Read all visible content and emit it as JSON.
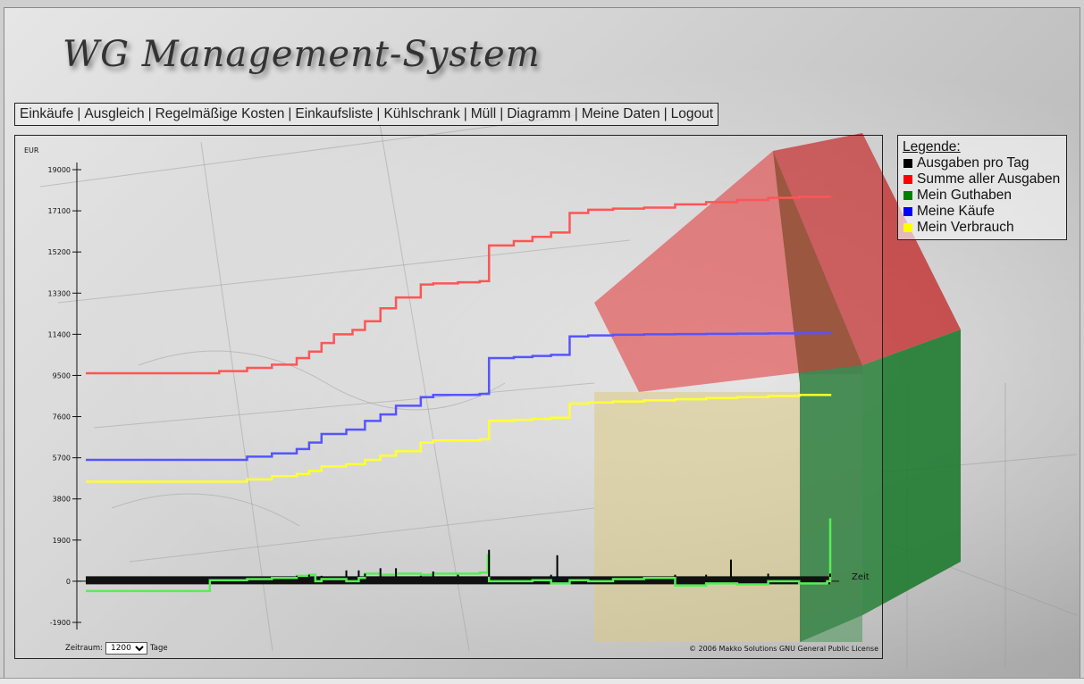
{
  "app": {
    "title": "WG Management-System"
  },
  "nav": {
    "items": [
      "Einkäufe",
      "Ausgleich",
      "Regelmäßige Kosten",
      "Einkaufsliste",
      "Kühlschrank",
      "Müll",
      "Diagramm",
      "Meine Daten",
      "Logout"
    ],
    "separator": "|"
  },
  "legend": {
    "title": "Legende:",
    "items": [
      {
        "label": "Ausgaben pro Tag",
        "color": "#000000"
      },
      {
        "label": "Summe aller Ausgaben",
        "color": "#ff0000"
      },
      {
        "label": "Mein Guthaben",
        "color": "#008000"
      },
      {
        "label": "Meine Käufe",
        "color": "#0000ff"
      },
      {
        "label": "Mein Verbrauch",
        "color": "#ffff00"
      }
    ]
  },
  "controls": {
    "zeitraum_label": "Zeitraum:",
    "zeitraum_value": "1200",
    "zeitraum_unit": "Tage"
  },
  "footer": {
    "copyright": "© 2006 Makko Solutions GNU General Public License"
  },
  "chart_data": {
    "type": "line",
    "ylabel": "EUR",
    "xlabel": "Zeit",
    "ylim": [
      -1900,
      19000
    ],
    "yticks": [
      "19000",
      "17100",
      "15200",
      "13300",
      "11400",
      "9500",
      "7600",
      "5700",
      "3800",
      "1900",
      "0",
      "-1900"
    ],
    "ytick_values": [
      19000,
      17100,
      15200,
      13300,
      11400,
      9500,
      7600,
      5700,
      3800,
      1900,
      0,
      -1900
    ],
    "xlim": [
      0,
      1200
    ],
    "grid": false,
    "series": [
      {
        "name": "Summe aller Ausgaben",
        "color": "#ff5555",
        "x": [
          0,
          190,
          215,
          260,
          300,
          340,
          360,
          380,
          400,
          430,
          450,
          475,
          500,
          540,
          560,
          600,
          635,
          650,
          690,
          720,
          750,
          780,
          810,
          850,
          900,
          950,
          1000,
          1050,
          1100,
          1150,
          1200
        ],
        "values": [
          9600,
          9600,
          9700,
          9850,
          10000,
          10300,
          10600,
          11000,
          11400,
          11600,
          12000,
          12600,
          13100,
          13700,
          13750,
          13800,
          13850,
          15500,
          15700,
          15900,
          16100,
          17000,
          17150,
          17200,
          17250,
          17400,
          17500,
          17600,
          17700,
          17750,
          17800
        ]
      },
      {
        "name": "Meine Käufe",
        "color": "#5555ff",
        "x": [
          0,
          190,
          260,
          300,
          340,
          360,
          380,
          420,
          450,
          475,
          500,
          540,
          560,
          600,
          635,
          650,
          690,
          720,
          750,
          780,
          810,
          850,
          900,
          950,
          1000,
          1050,
          1100,
          1150,
          1200
        ],
        "values": [
          5600,
          5600,
          5750,
          5900,
          6100,
          6400,
          6800,
          7000,
          7400,
          7700,
          8100,
          8500,
          8600,
          8600,
          8650,
          10300,
          10350,
          10400,
          10450,
          11300,
          11350,
          11380,
          11400,
          11410,
          11420,
          11430,
          11440,
          11450,
          11500
        ]
      },
      {
        "name": "Mein Verbrauch",
        "color": "#ffff33",
        "x": [
          0,
          190,
          260,
          300,
          340,
          360,
          380,
          420,
          450,
          475,
          500,
          540,
          560,
          600,
          635,
          650,
          690,
          720,
          750,
          780,
          810,
          850,
          900,
          950,
          1000,
          1050,
          1100,
          1150,
          1200
        ],
        "values": [
          4600,
          4600,
          4700,
          4850,
          4950,
          5100,
          5300,
          5400,
          5600,
          5800,
          6000,
          6400,
          6500,
          6500,
          6550,
          7400,
          7450,
          7500,
          7550,
          8200,
          8250,
          8300,
          8350,
          8400,
          8450,
          8500,
          8550,
          8600,
          8650
        ]
      },
      {
        "name": "Mein Guthaben",
        "color": "#55ee55",
        "x": [
          0,
          190,
          200,
          260,
          300,
          340,
          360,
          370,
          380,
          420,
          440,
          450,
          475,
          500,
          540,
          560,
          600,
          635,
          648,
          650,
          690,
          720,
          750,
          780,
          810,
          850,
          900,
          950,
          1000,
          1050,
          1100,
          1150,
          1195,
          1200
        ],
        "values": [
          -450,
          -450,
          50,
          100,
          150,
          250,
          300,
          0,
          100,
          0,
          150,
          350,
          300,
          350,
          300,
          350,
          350,
          400,
          1200,
          0,
          0,
          50,
          -100,
          50,
          0,
          100,
          150,
          -200,
          -100,
          -150,
          0,
          -100,
          0,
          2900
        ]
      },
      {
        "name": "Ausgaben pro Tag",
        "color": "#000000",
        "x": [
          340,
          360,
          380,
          420,
          440,
          450,
          475,
          500,
          540,
          560,
          600,
          650,
          750,
          760,
          950,
          1000,
          1040,
          1100,
          1200
        ],
        "values": [
          250,
          300,
          250,
          500,
          500,
          350,
          600,
          600,
          250,
          450,
          300,
          1450,
          300,
          1200,
          300,
          300,
          1000,
          350,
          350
        ]
      }
    ]
  }
}
